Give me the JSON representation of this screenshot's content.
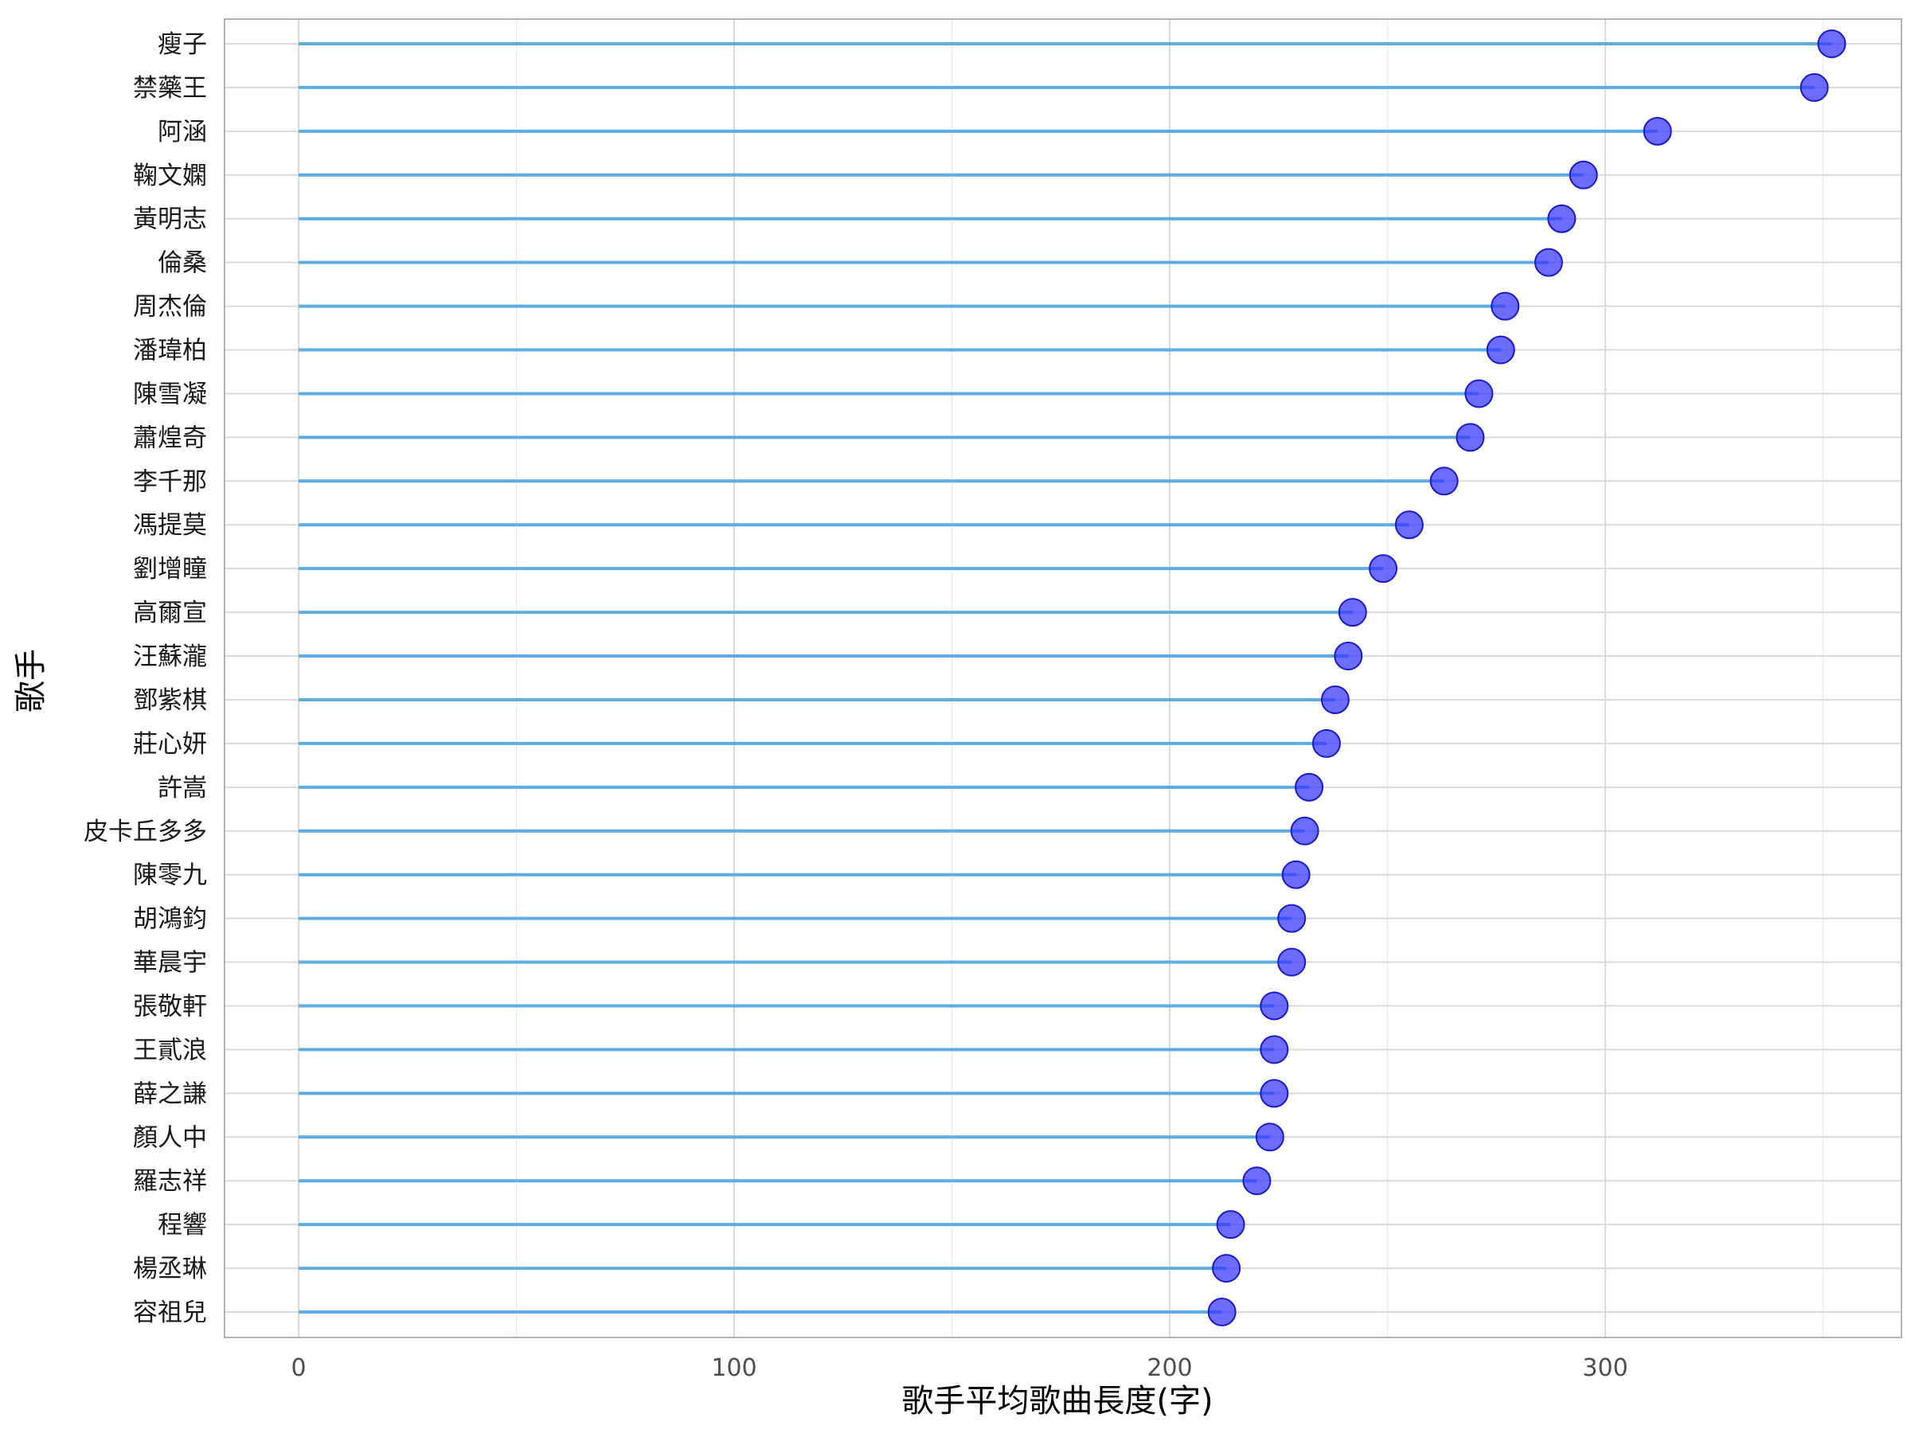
{
  "chart_data": {
    "type": "lollipop",
    "title": "",
    "xlabel": "歌手平均歌曲長度(字)",
    "ylabel": "歌手",
    "xlim": [
      -17,
      368
    ],
    "xticks": [
      0,
      100,
      200,
      300
    ],
    "grid": true,
    "colors": {
      "stem": "#5dade2",
      "point": "#3333ff",
      "point_edge": "#1a1acc"
    },
    "categories": [
      "瘦子",
      "禁藥王",
      "阿涵",
      "鞠文嫻",
      "黃明志",
      "倫桑",
      "周杰倫",
      "潘瑋柏",
      "陳雪凝",
      "蕭煌奇",
      "李千那",
      "馮提莫",
      "劉增瞳",
      "高爾宣",
      "汪蘇瀧",
      "鄧紫棋",
      "莊心妍",
      "許嵩",
      "皮卡丘多多",
      "陳零九",
      "胡鴻鈞",
      "華晨宇",
      "張敬軒",
      "王貳浪",
      "薛之謙",
      "顏人中",
      "羅志祥",
      "程響",
      "楊丞琳",
      "容祖兒"
    ],
    "values": [
      352,
      348,
      312,
      295,
      290,
      287,
      277,
      276,
      271,
      269,
      263,
      255,
      249,
      242,
      241,
      238,
      236,
      232,
      231,
      229,
      228,
      228,
      224,
      224,
      224,
      223,
      220,
      214,
      213,
      212
    ]
  }
}
